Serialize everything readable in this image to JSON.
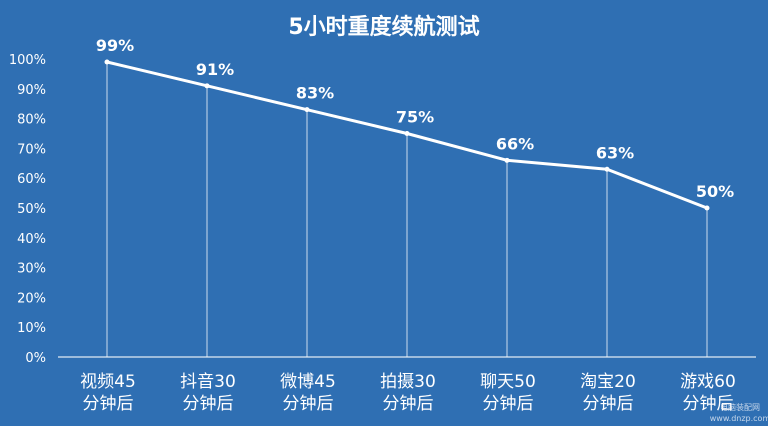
{
  "chart_data": {
    "type": "line",
    "title": "5小时重度续航测试",
    "categories": [
      [
        "视频45",
        "分钟后"
      ],
      [
        "抖音30",
        "分钟后"
      ],
      [
        "微博45",
        "分钟后"
      ],
      [
        "拍摄30",
        "分钟后"
      ],
      [
        "聊天50",
        "分钟后"
      ],
      [
        "淘宝20",
        "分钟后"
      ],
      [
        "游戏60",
        "分钟后"
      ]
    ],
    "values": [
      99,
      91,
      83,
      75,
      66,
      63,
      50
    ],
    "data_labels": [
      "99%",
      "91%",
      "83%",
      "75%",
      "66%",
      "63%",
      "50%"
    ],
    "y_ticks": [
      "0%",
      "10%",
      "20%",
      "30%",
      "40%",
      "50%",
      "60%",
      "70%",
      "80%",
      "90%",
      "100%"
    ],
    "ylim": [
      0,
      100
    ],
    "grid": false,
    "colors": {
      "background": "#2f6fb3",
      "line": "#ffffff"
    }
  },
  "watermark": [
    "电脑装配网",
    "www.dnzp.com"
  ]
}
